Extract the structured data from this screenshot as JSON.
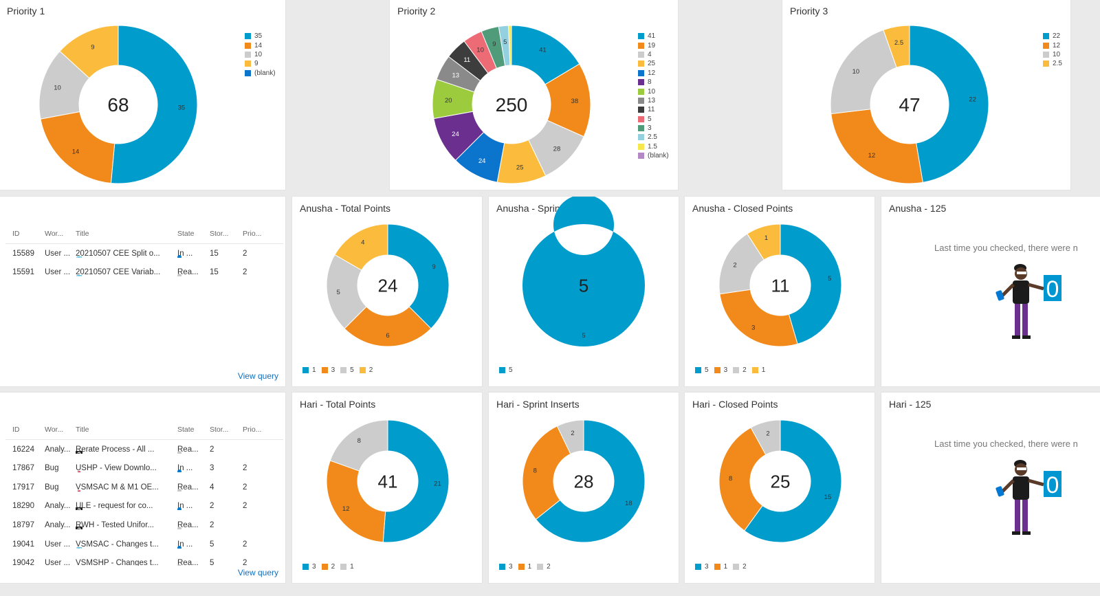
{
  "donut_tiles": [
    {
      "id": "priority-1",
      "title": "Priority 1",
      "center": "68",
      "legend": [
        "35",
        "14",
        "10",
        "9",
        "(blank)"
      ],
      "legend_colors": [
        "#009ccc",
        "#f28a1b",
        "#cccccc",
        "#fbbc3d",
        "#0b74cc"
      ],
      "chart_data": {
        "type": "pie",
        "values": [
          35,
          14,
          10,
          9
        ],
        "labels": [
          "35",
          "14",
          "10",
          "9"
        ],
        "colors": [
          "#009ccc",
          "#f28a1b",
          "#cccccc",
          "#fbbc3d"
        ]
      }
    },
    {
      "id": "priority-2",
      "title": "Priority 2",
      "center": "250",
      "legend": [
        "41",
        "19",
        "4",
        "25",
        "12",
        "8",
        "10",
        "13",
        "11",
        "5",
        "3",
        "2.5",
        "1.5",
        "(blank)"
      ],
      "legend_colors": [
        "#009ccc",
        "#f28a1b",
        "#cccccc",
        "#fbbc3d",
        "#0b74cc",
        "#6b2f8f",
        "#9ccc3d",
        "#8a8a8a",
        "#3d3d3d",
        "#ec6b75",
        "#4f9b7a",
        "#93d1e1",
        "#f6e84c",
        "#b388c4"
      ],
      "chart_data": {
        "type": "pie",
        "values": [
          41,
          38,
          28,
          25,
          24,
          24,
          20,
          13,
          11,
          10,
          9,
          5,
          1.5
        ],
        "labels": [
          "41",
          "38",
          "28",
          "25",
          "24",
          "24",
          "20",
          "13",
          "11",
          "10",
          "9",
          "5",
          ""
        ],
        "colors": [
          "#009ccc",
          "#f28a1b",
          "#cccccc",
          "#fbbc3d",
          "#0b74cc",
          "#6b2f8f",
          "#9ccc3d",
          "#8a8a8a",
          "#3d3d3d",
          "#ec6b75",
          "#4f9b7a",
          "#93d1e1",
          "#f6e84c"
        ]
      }
    },
    {
      "id": "priority-3",
      "title": "Priority 3",
      "center": "47",
      "legend": [
        "22",
        "12",
        "10",
        "2.5"
      ],
      "legend_colors": [
        "#009ccc",
        "#f28a1b",
        "#cccccc",
        "#fbbc3d"
      ],
      "chart_data": {
        "type": "pie",
        "values": [
          22,
          12,
          10,
          2.5
        ],
        "labels": [
          "22",
          "12",
          "10",
          "2.5"
        ],
        "colors": [
          "#009ccc",
          "#f28a1b",
          "#cccccc",
          "#fbbc3d"
        ]
      }
    },
    {
      "id": "anusha-total-points",
      "title": "Anusha - Total Points",
      "center": "24",
      "legend": [
        "1",
        "3",
        "5",
        "2"
      ],
      "legend_colors": [
        "#009ccc",
        "#f28a1b",
        "#cccccc",
        "#fbbc3d"
      ],
      "chart_data": {
        "type": "pie",
        "values": [
          9,
          6,
          5,
          4
        ],
        "labels": [
          "9",
          "6",
          "5",
          "4"
        ],
        "colors": [
          "#009ccc",
          "#f28a1b",
          "#cccccc",
          "#fbbc3d"
        ]
      }
    },
    {
      "id": "anusha-sprint-inserts",
      "title": "Anusha - Sprint Inserts",
      "center": "5",
      "legend": [
        "5"
      ],
      "legend_colors": [
        "#009ccc"
      ],
      "chart_data": {
        "type": "pie",
        "values": [
          5
        ],
        "labels": [
          "5"
        ],
        "colors": [
          "#009ccc"
        ]
      }
    },
    {
      "id": "anusha-closed-points",
      "title": "Anusha - Closed Points",
      "center": "11",
      "legend": [
        "5",
        "3",
        "2",
        "1"
      ],
      "legend_colors": [
        "#009ccc",
        "#f28a1b",
        "#cccccc",
        "#fbbc3d"
      ],
      "chart_data": {
        "type": "pie",
        "values": [
          5,
          3,
          2,
          1
        ],
        "labels": [
          "5",
          "3",
          "2",
          "1"
        ],
        "colors": [
          "#009ccc",
          "#f28a1b",
          "#cccccc",
          "#fbbc3d"
        ]
      }
    },
    {
      "id": "hari-total-points",
      "title": "Hari - Total Points",
      "center": "41",
      "legend": [
        "3",
        "2",
        "1"
      ],
      "legend_colors": [
        "#009ccc",
        "#f28a1b",
        "#cccccc"
      ],
      "chart_data": {
        "type": "pie",
        "values": [
          21,
          12,
          8
        ],
        "labels": [
          "21",
          "12",
          "8"
        ],
        "colors": [
          "#009ccc",
          "#f28a1b",
          "#cccccc"
        ]
      }
    },
    {
      "id": "hari-sprint-inserts",
      "title": "Hari - Sprint Inserts",
      "center": "28",
      "legend": [
        "3",
        "1",
        "2"
      ],
      "legend_colors": [
        "#009ccc",
        "#f28a1b",
        "#cccccc"
      ],
      "chart_data": {
        "type": "pie",
        "values": [
          18,
          8,
          2
        ],
        "labels": [
          "18",
          "8",
          "2"
        ],
        "colors": [
          "#009ccc",
          "#f28a1b",
          "#cccccc"
        ]
      }
    },
    {
      "id": "hari-closed-points",
      "title": "Hari - Closed Points",
      "center": "25",
      "legend": [
        "3",
        "1",
        "2"
      ],
      "legend_colors": [
        "#009ccc",
        "#f28a1b",
        "#cccccc"
      ],
      "chart_data": {
        "type": "pie",
        "values": [
          15,
          8,
          2
        ],
        "labels": [
          "15",
          "8",
          "2"
        ],
        "colors": [
          "#009ccc",
          "#f28a1b",
          "#cccccc"
        ]
      }
    }
  ],
  "query_tiles": [
    {
      "id": "query-anusha",
      "headers": [
        "ID",
        "Wor...",
        "Title",
        "State",
        "Stor...",
        "Prio..."
      ],
      "rows": [
        {
          "id": "15589",
          "type": "User ...",
          "icon": "user-story-icon",
          "title": "20210507 CEE Split o...",
          "state": "In ...",
          "state_color": "#007acc",
          "story": "15",
          "prio": "2"
        },
        {
          "id": "15591",
          "type": "User ...",
          "icon": "user-story-icon",
          "title": "20210507 CEE Variab...",
          "state": "Rea...",
          "state_color": "#c8c8c8",
          "story": "15",
          "prio": "2"
        }
      ],
      "view_query": "View query"
    },
    {
      "id": "query-hari",
      "headers": [
        "ID",
        "Wor...",
        "Title",
        "State",
        "Stor...",
        "Prio..."
      ],
      "rows": [
        {
          "id": "16224",
          "type": "Analy...",
          "icon": "analysis-icon",
          "title": "Rerate Process - All ...",
          "state": "Rea...",
          "state_color": "#c8c8c8",
          "story": "2",
          "prio": ""
        },
        {
          "id": "17867",
          "type": "Bug",
          "icon": "bug-icon",
          "title": "USHP - View Downlo...",
          "state": "In ...",
          "state_color": "#007acc",
          "story": "3",
          "prio": "2"
        },
        {
          "id": "17917",
          "type": "Bug",
          "icon": "bug-icon",
          "title": "VSMSAC M & M1 OE...",
          "state": "Rea...",
          "state_color": "#c8c8c8",
          "story": "4",
          "prio": "2"
        },
        {
          "id": "18290",
          "type": "Analy...",
          "icon": "analysis-icon",
          "title": "ULE - request for co...",
          "state": "In ...",
          "state_color": "#007acc",
          "story": "2",
          "prio": "2"
        },
        {
          "id": "18797",
          "type": "Analy...",
          "icon": "analysis-icon",
          "title": "RWH - Tested Unifor...",
          "state": "Rea...",
          "state_color": "#c8c8c8",
          "story": "2",
          "prio": ""
        },
        {
          "id": "19041",
          "type": "User ...",
          "icon": "user-story-icon",
          "title": "VSMSAC - Changes t...",
          "state": "In ...",
          "state_color": "#007acc",
          "story": "5",
          "prio": "2"
        },
        {
          "id": "19042",
          "type": "User ...",
          "icon": "user-story-icon",
          "title": "VSMSHP - Changes t...",
          "state": "Rea...",
          "state_color": "#c8c8c8",
          "story": "5",
          "prio": "2"
        }
      ],
      "view_query": "View query"
    }
  ],
  "message_tiles": [
    {
      "id": "anusha-125",
      "title": "Anusha - 125",
      "message": "Last time you checked, there were n",
      "count": "0"
    },
    {
      "id": "hari-125",
      "title": "Hari - 125",
      "message": "Last time you checked, there were n",
      "count": "0"
    }
  ]
}
